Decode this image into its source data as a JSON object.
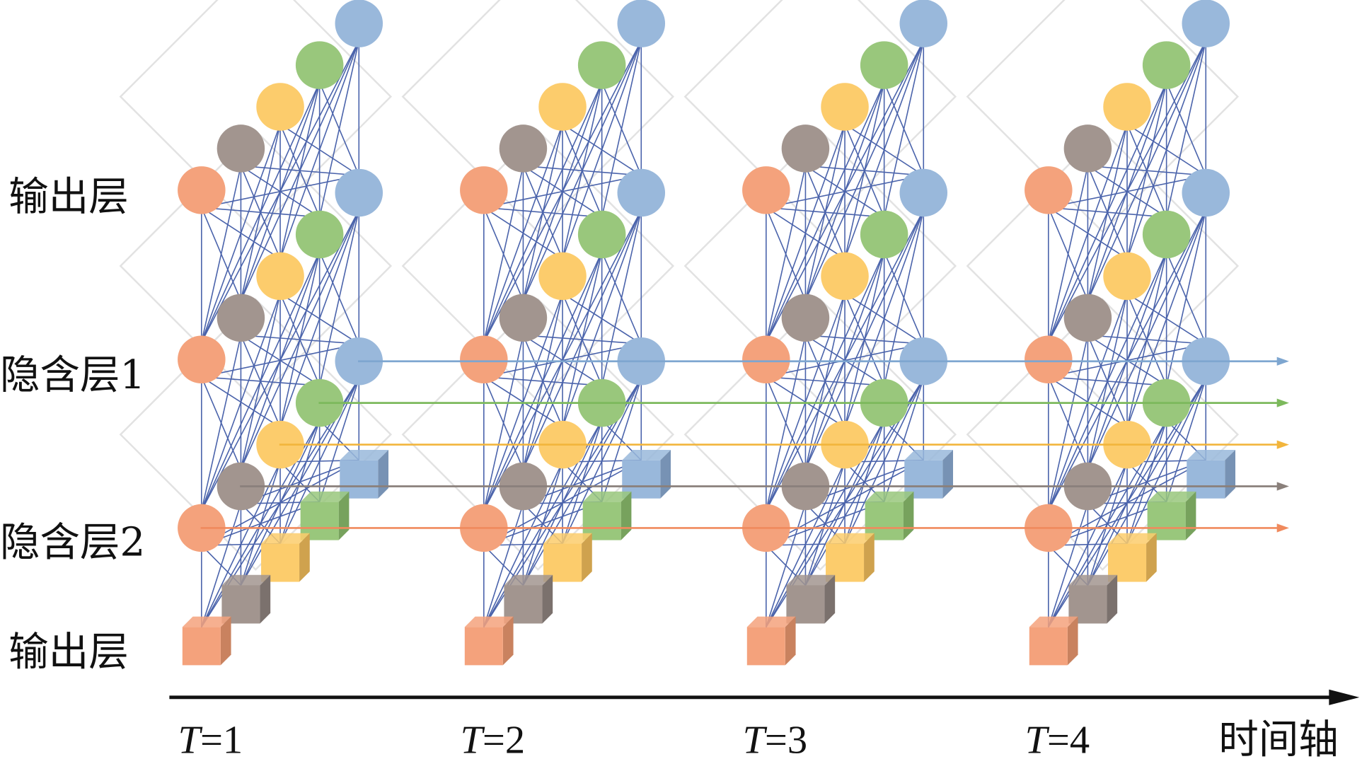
{
  "layer_labels": {
    "output": "输出层",
    "hidden1": "隐含层1",
    "hidden2": "隐含层2",
    "input": "输出层"
  },
  "time_steps": [
    {
      "var": "T",
      "eq": "=1"
    },
    {
      "var": "T",
      "eq": "=2"
    },
    {
      "var": "T",
      "eq": "=3"
    },
    {
      "var": "T",
      "eq": "=4"
    }
  ],
  "axis_label": "时间轴",
  "node_colors": [
    "#f4a27c",
    "#a2958f",
    "#fccc6c",
    "#99c77c",
    "#99b8db"
  ],
  "cube_side_colors": [
    "#c9825f",
    "#7b716d",
    "#cfa24e",
    "#77a25d",
    "#7792b4"
  ],
  "arrow_colors": [
    "#f08a5d",
    "#8a807b",
    "#f2b53c",
    "#7cb95c",
    "#7ea6d0"
  ],
  "link_color": "#4a63ab",
  "axis_color": "#111111"
}
